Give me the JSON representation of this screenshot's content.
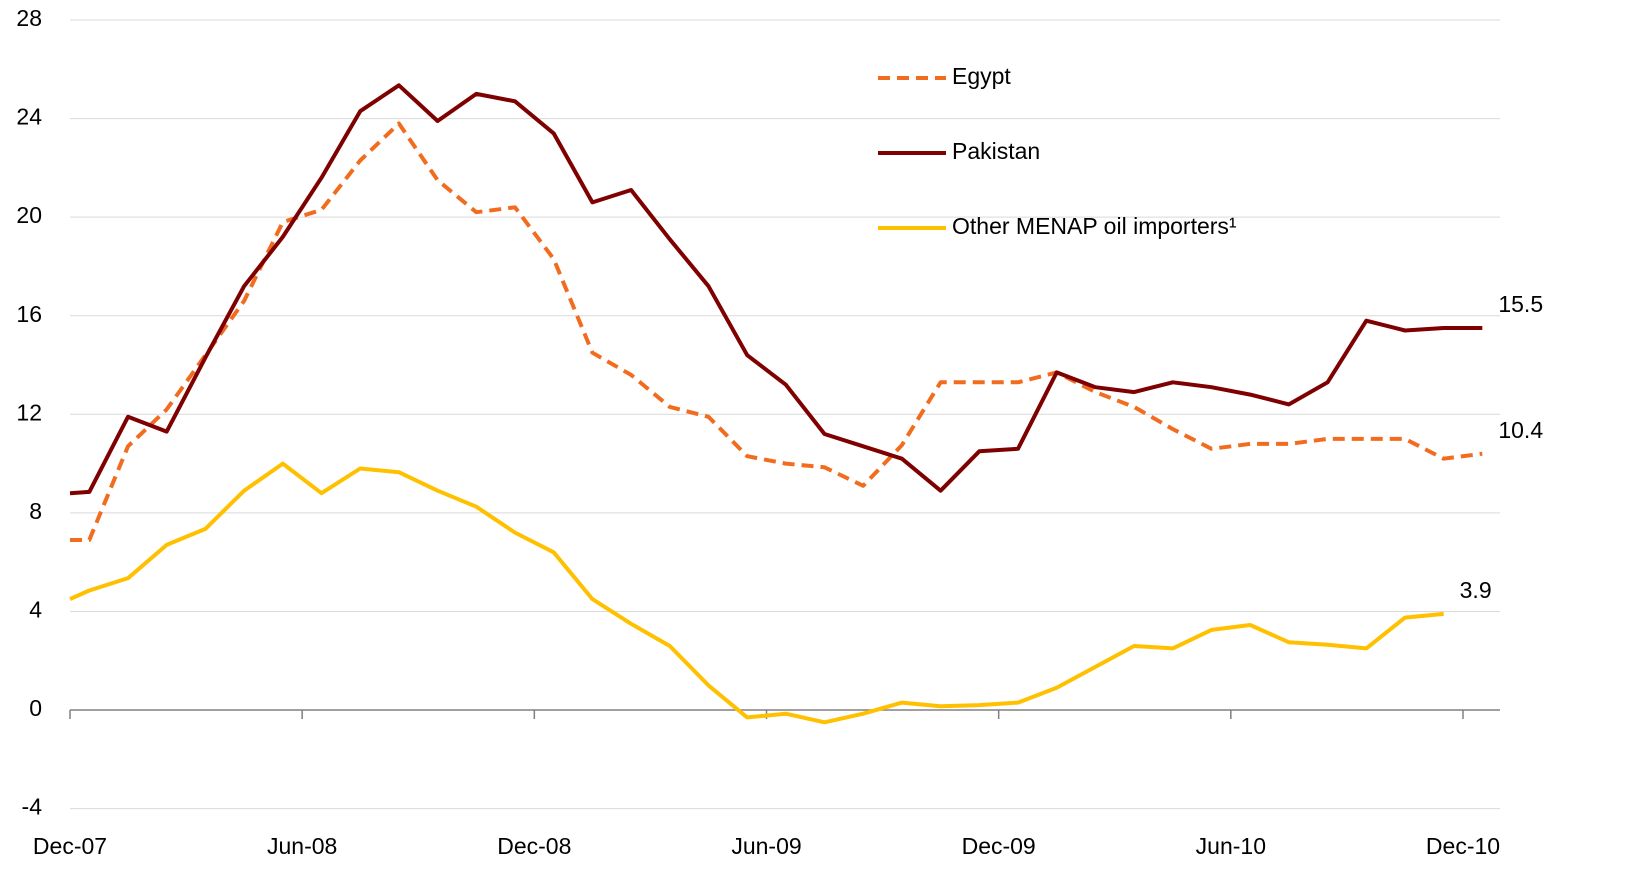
{
  "chart_data": {
    "type": "line",
    "x": [
      0,
      0.5,
      1.5,
      2.5,
      3.5,
      4.5,
      5.5,
      6.5,
      7.5,
      8.5,
      9.5,
      10.5,
      11.5,
      12.5,
      13.5,
      14.5,
      15.5,
      16.5,
      17.5,
      18.5,
      19.5,
      20.5,
      21.5,
      22.5,
      23.5,
      24.5,
      25.5,
      26.5,
      27.5,
      28.5,
      29.5,
      30.5,
      31.5,
      32.5,
      33.5,
      34.5,
      35.5,
      36.5
    ],
    "series": [
      {
        "name": "Egypt",
        "color": "#f26c1f",
        "dashed": true,
        "values": [
          6.9,
          6.9,
          10.7,
          12.2,
          14.4,
          16.6,
          19.8,
          20.3,
          22.3,
          23.8,
          21.5,
          20.2,
          20.4,
          18.3,
          14.5,
          13.6,
          12.3,
          11.9,
          10.3,
          10.0,
          9.85,
          9.1,
          10.75,
          13.3,
          13.3,
          13.3,
          13.7,
          12.9,
          12.3,
          11.4,
          10.6,
          10.8,
          10.8,
          11.0,
          11.0,
          11.0,
          10.2,
          10.4
        ]
      },
      {
        "name": "Pakistan",
        "color": "#7f0000",
        "dashed": false,
        "values": [
          8.8,
          8.85,
          11.9,
          11.3,
          14.3,
          17.2,
          19.2,
          21.6,
          24.3,
          25.35,
          23.9,
          25.0,
          24.7,
          23.4,
          20.6,
          21.1,
          19.1,
          17.2,
          14.4,
          13.2,
          11.2,
          10.7,
          10.2,
          8.9,
          10.5,
          10.6,
          13.7,
          13.1,
          12.9,
          13.3,
          13.1,
          12.8,
          12.4,
          13.3,
          15.8,
          15.4,
          15.5,
          15.5
        ]
      },
      {
        "name": "Other MENAP oil importers¹",
        "color": "#ffc000",
        "dashed": false,
        "values": [
          4.5,
          4.85,
          5.35,
          6.7,
          7.35,
          8.9,
          10.0,
          8.8,
          9.8,
          9.65,
          8.9,
          8.25,
          7.2,
          6.4,
          4.5,
          3.5,
          2.6,
          1.0,
          -0.3,
          -0.15,
          -0.5,
          -0.15,
          0.3,
          0.15,
          0.2,
          0.3,
          0.9,
          1.75,
          2.6,
          2.5,
          3.25,
          3.45,
          2.75,
          2.65,
          2.5,
          3.75,
          3.9,
          null
        ]
      }
    ],
    "annotations": [
      {
        "text": "15.5",
        "series": "Pakistan"
      },
      {
        "text": "10.4",
        "series": "Egypt"
      },
      {
        "text": "3.9",
        "series": "Other MENAP oil importers¹"
      }
    ],
    "xlim": [
      0,
      36
    ],
    "xticks": [
      {
        "value": 0,
        "label": "Dec-07"
      },
      {
        "value": 6,
        "label": "Jun-08"
      },
      {
        "value": 12,
        "label": "Dec-08"
      },
      {
        "value": 18,
        "label": "Jun-09"
      },
      {
        "value": 24,
        "label": "Dec-09"
      },
      {
        "value": 30,
        "label": "Jun-10"
      },
      {
        "value": 36,
        "label": "Dec-10"
      }
    ],
    "ylim": [
      -4,
      28
    ],
    "yticks": [
      -4,
      0,
      4,
      8,
      12,
      16,
      20,
      24,
      28
    ],
    "grid": true,
    "legend": "top-right"
  }
}
